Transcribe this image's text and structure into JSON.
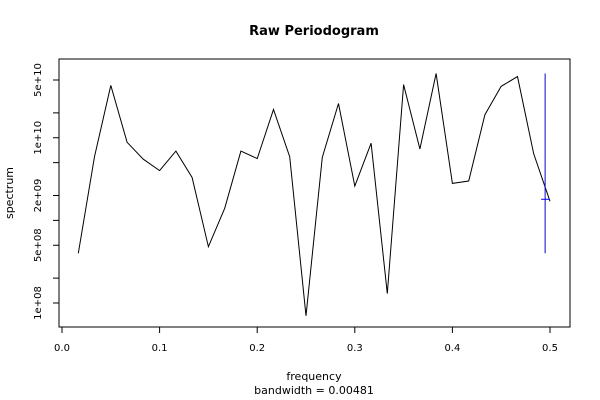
{
  "chart_data": {
    "type": "line",
    "title": "Raw Periodogram",
    "xlabel": "frequency",
    "xlabel2": "bandwidth = 0.00481",
    "ylabel": "spectrum",
    "xlim": [
      0.0,
      0.5
    ],
    "y_scale": "log",
    "ylim": [
      50000000,
      100000000000
    ],
    "x_ticks": [
      {
        "value": 0.0,
        "label": "0.0"
      },
      {
        "value": 0.1,
        "label": "0.1"
      },
      {
        "value": 0.2,
        "label": "0.2"
      },
      {
        "value": 0.3,
        "label": "0.3"
      },
      {
        "value": 0.4,
        "label": "0.4"
      },
      {
        "value": 0.5,
        "label": "0.5"
      }
    ],
    "y_ticks": [
      {
        "value": 100000000,
        "label": "1e+08"
      },
      {
        "value": 200000000,
        "label": ""
      },
      {
        "value": 500000000,
        "label": "5e+08"
      },
      {
        "value": 1000000000,
        "label": ""
      },
      {
        "value": 2000000000,
        "label": "2e+09"
      },
      {
        "value": 5000000000,
        "label": ""
      },
      {
        "value": 10000000000,
        "label": "1e+10"
      },
      {
        "value": 20000000000,
        "label": ""
      },
      {
        "value": 50000000000,
        "label": "5e+10"
      }
    ],
    "series": [
      {
        "color": "#000000",
        "x": [
          0.0167,
          0.0333,
          0.05,
          0.0667,
          0.0833,
          0.1,
          0.1167,
          0.1333,
          0.15,
          0.1667,
          0.1833,
          0.2,
          0.2167,
          0.2333,
          0.25,
          0.2667,
          0.2833,
          0.3,
          0.3167,
          0.3333,
          0.35,
          0.3667,
          0.3833,
          0.4,
          0.4167,
          0.4333,
          0.45,
          0.4667,
          0.4833,
          0.5
        ],
        "values": [
          400000000,
          5900000000,
          43000000000,
          8800000000,
          5500000000,
          4000000000,
          6900000000,
          3300000000,
          480000000,
          1400000000,
          6900000000,
          5600000000,
          22000000000,
          5900000000,
          70000000,
          5800000000,
          26000000000,
          2600000000,
          8600000000,
          130000000,
          44000000000,
          7300000000,
          60000000000,
          2800000000,
          3000000000,
          19000000000,
          42000000000,
          55000000000,
          6400000000,
          1700000000
        ]
      }
    ],
    "ci_bar": {
      "color": "#0000ff",
      "x": 0.495,
      "center": 1800000000,
      "upper": 60000000000,
      "lower": 400000000
    }
  }
}
